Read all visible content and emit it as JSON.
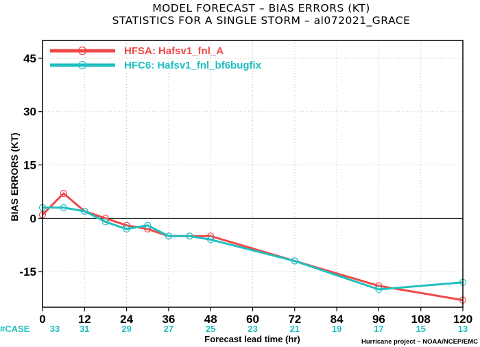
{
  "chart_data": {
    "type": "line",
    "title": "MODEL FORECAST – BIAS ERRORS (KT)",
    "subtitle": "STATISTICS FOR A SINGLE STORM – al072021_GRACE",
    "ylabel": "BIAS ERRORS (KT)",
    "xlabel": "Forecast lead time (hr)",
    "credit": "Hurricane project – NOAA/NCEP/EMC",
    "xlim": [
      0,
      120
    ],
    "ylim": [
      -25,
      50
    ],
    "xticks": [
      0,
      12,
      24,
      36,
      48,
      60,
      72,
      84,
      96,
      108,
      120
    ],
    "yticks": [
      -15,
      0,
      15,
      30,
      45
    ],
    "grid": true,
    "legend_position": "top-left",
    "case_label": "#CASE",
    "case_x": [
      0,
      12,
      24,
      36,
      48,
      60,
      72,
      84,
      96,
      108,
      120
    ],
    "case_counts": [
      "33",
      "31",
      "29",
      "27",
      "25",
      "23",
      "21",
      "19",
      "17",
      "15",
      "13"
    ],
    "case_color": "#20c0c0",
    "series": [
      {
        "name": "HFSA: Hafsv1_fnl_A",
        "color": "#f04848",
        "x": [
          0,
          6,
          12,
          18,
          24,
          30,
          36,
          42,
          48,
          72,
          96,
          120
        ],
        "y": [
          1,
          7,
          2,
          0,
          -2,
          -3,
          -5,
          -5,
          -5,
          -12,
          -19,
          -23
        ]
      },
      {
        "name": "HFC6: Hafsv1_fnl_bf6bugfix",
        "color": "#20c0c0",
        "x": [
          0,
          6,
          12,
          18,
          24,
          30,
          36,
          42,
          48,
          72,
          96,
          120
        ],
        "y": [
          3,
          3,
          2,
          -1,
          -3,
          -2,
          -5,
          -5,
          -6,
          -12,
          -20,
          -18
        ]
      }
    ]
  }
}
